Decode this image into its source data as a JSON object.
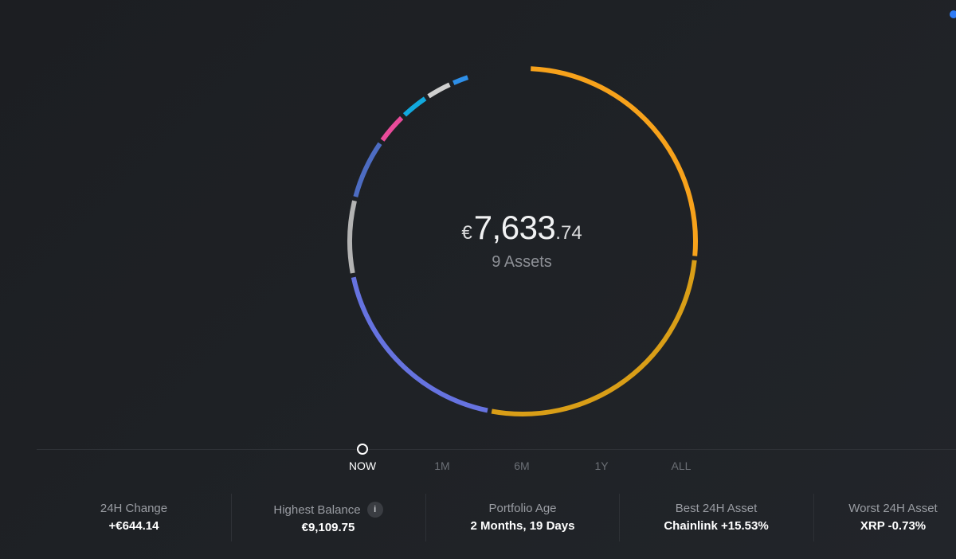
{
  "colors": {
    "background": "#1f2226",
    "accent_dot": "#2f7cf6"
  },
  "portfolio": {
    "currency_symbol": "€",
    "balance_whole": "7,633",
    "balance_cents": ".74",
    "assets_label": "9 Assets"
  },
  "allocation": {
    "type": "pie",
    "segments": [
      {
        "color": "#f7a21b",
        "share": 0.26
      },
      {
        "color": "#d99e17",
        "share": 0.265
      },
      {
        "color": "#6673e0",
        "share": 0.188
      },
      {
        "color": "#b3b3b3",
        "share": 0.071
      },
      {
        "color": "#4d6cc2",
        "share": 0.058
      },
      {
        "color": "#e94b9a",
        "share": 0.031
      },
      {
        "color": "#12a9de",
        "share": 0.028
      },
      {
        "color": "#cfcfcf",
        "share": 0.026
      },
      {
        "color": "#2e8fe8",
        "share": 0.018
      }
    ]
  },
  "timeline": {
    "tabs": [
      {
        "label": "NOW",
        "active": true
      },
      {
        "label": "1M",
        "active": false
      },
      {
        "label": "6M",
        "active": false
      },
      {
        "label": "1Y",
        "active": false
      },
      {
        "label": "ALL",
        "active": false
      }
    ]
  },
  "stats": {
    "change_24h": {
      "label": "24H Change",
      "value": "+€644.14"
    },
    "highest_balance": {
      "label": "Highest Balance",
      "value": "€9,109.75",
      "info_icon": "i"
    },
    "portfolio_age": {
      "label": "Portfolio Age",
      "value": "2 Months, 19 Days"
    },
    "best_asset": {
      "label": "Best 24H Asset",
      "value": "Chainlink +15.53%"
    },
    "worst_asset": {
      "label": "Worst 24H Asset",
      "value": "XRP -0.73%"
    }
  }
}
